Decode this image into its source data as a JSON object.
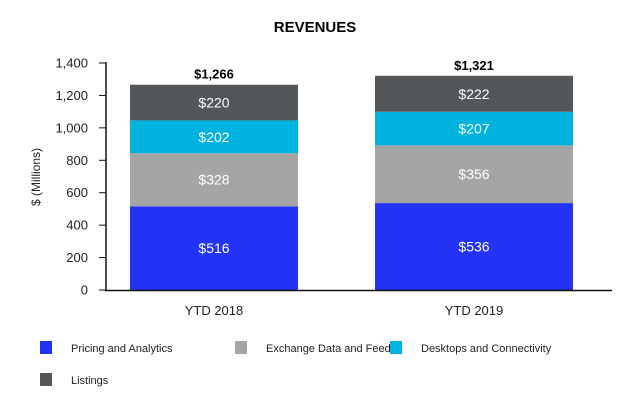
{
  "chart_data": {
    "type": "bar",
    "stacked": true,
    "title": "REVENUES",
    "xlabel": "",
    "ylabel": "$ (Millions)",
    "ylim": [
      0,
      1400
    ],
    "yticks": [
      0,
      200,
      400,
      600,
      800,
      1000,
      1200,
      1400
    ],
    "ytick_labels": [
      "0",
      "200",
      "400",
      "600",
      "800",
      "1,000",
      "1,200",
      "1,400"
    ],
    "grid": false,
    "legend_position": "bottom",
    "categories": [
      "YTD 2018",
      "YTD 2019"
    ],
    "series": [
      {
        "name": "Pricing and Analytics",
        "values": [
          516,
          536
        ],
        "labels": [
          "$516",
          "$536"
        ],
        "color": "#2233F5"
      },
      {
        "name": "Exchange Data and Feeds",
        "values": [
          328,
          356
        ],
        "labels": [
          "$328",
          "$356"
        ],
        "color": "#A5A5A5"
      },
      {
        "name": "Desktops and Connectivity",
        "values": [
          202,
          207
        ],
        "labels": [
          "$202",
          "$207"
        ],
        "color": "#00B2DE"
      },
      {
        "name": "Listings",
        "values": [
          220,
          222
        ],
        "labels": [
          "$220",
          "$222"
        ],
        "color": "#54575A"
      }
    ],
    "totals": [
      1266,
      1321
    ],
    "total_labels": [
      "$1,266",
      "$1,321"
    ]
  }
}
